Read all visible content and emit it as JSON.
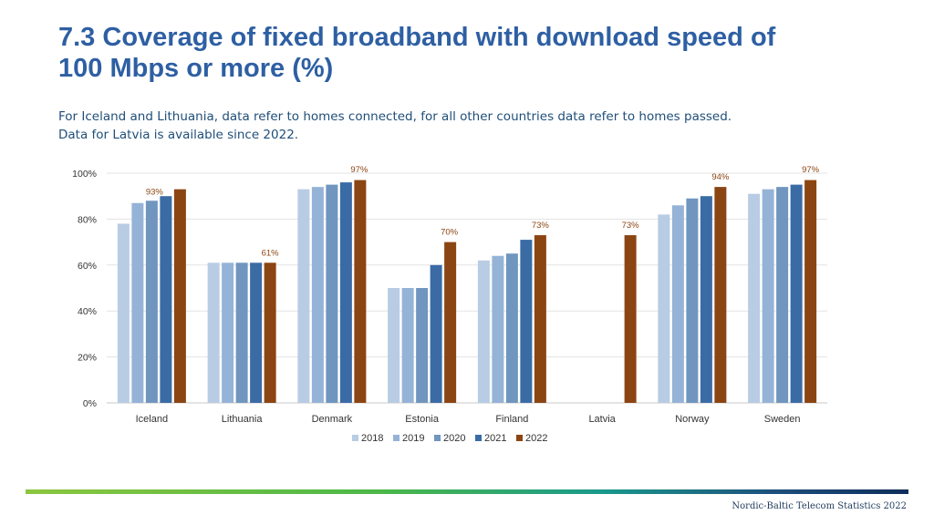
{
  "header": {
    "title_line1": "7.3 Coverage of fixed broadband with download speed of",
    "title_line2": "100 Mbps or more (%)",
    "subtitle_line1": "For Iceland and Lithuania, data refer to homes connected, for all other countries data refer to homes passed.",
    "subtitle_line2": "Data for Latvia is available since 2022."
  },
  "footer": {
    "text": "Nordic-Baltic Telecom Statistics 2022"
  },
  "chart_data": {
    "type": "bar",
    "categories": [
      "Iceland",
      "Lithuania",
      "Denmark",
      "Estonia",
      "Finland",
      "Latvia",
      "Norway",
      "Sweden"
    ],
    "series": [
      {
        "name": "2018",
        "color": "#b8cce4",
        "values": [
          78,
          61,
          93,
          50,
          62,
          null,
          82,
          91
        ]
      },
      {
        "name": "2019",
        "color": "#95b3d7",
        "values": [
          87,
          61,
          94,
          50,
          64,
          null,
          86,
          93
        ]
      },
      {
        "name": "2020",
        "color": "#7096bf",
        "values": [
          88,
          61,
          95,
          50,
          65,
          null,
          89,
          94
        ]
      },
      {
        "name": "2021",
        "color": "#3b6ba5",
        "values": [
          90,
          61,
          96,
          60,
          71,
          null,
          90,
          95
        ]
      },
      {
        "name": "2022",
        "color": "#8b4513",
        "values": [
          93,
          61,
          97,
          70,
          73,
          73,
          94,
          97
        ]
      }
    ],
    "data_labels": [
      "93%",
      "61%",
      "97%",
      "70%",
      "73%",
      "73%",
      "94%",
      "97%"
    ],
    "y_ticks": [
      "0%",
      "20%",
      "40%",
      "60%",
      "80%",
      "100%"
    ],
    "y_tick_values": [
      0,
      20,
      40,
      60,
      80,
      100
    ],
    "ylim": [
      0,
      100
    ],
    "grid": true,
    "legend_position": "bottom",
    "xlabel": "",
    "ylabel": "",
    "label_color": "#8b4513"
  }
}
